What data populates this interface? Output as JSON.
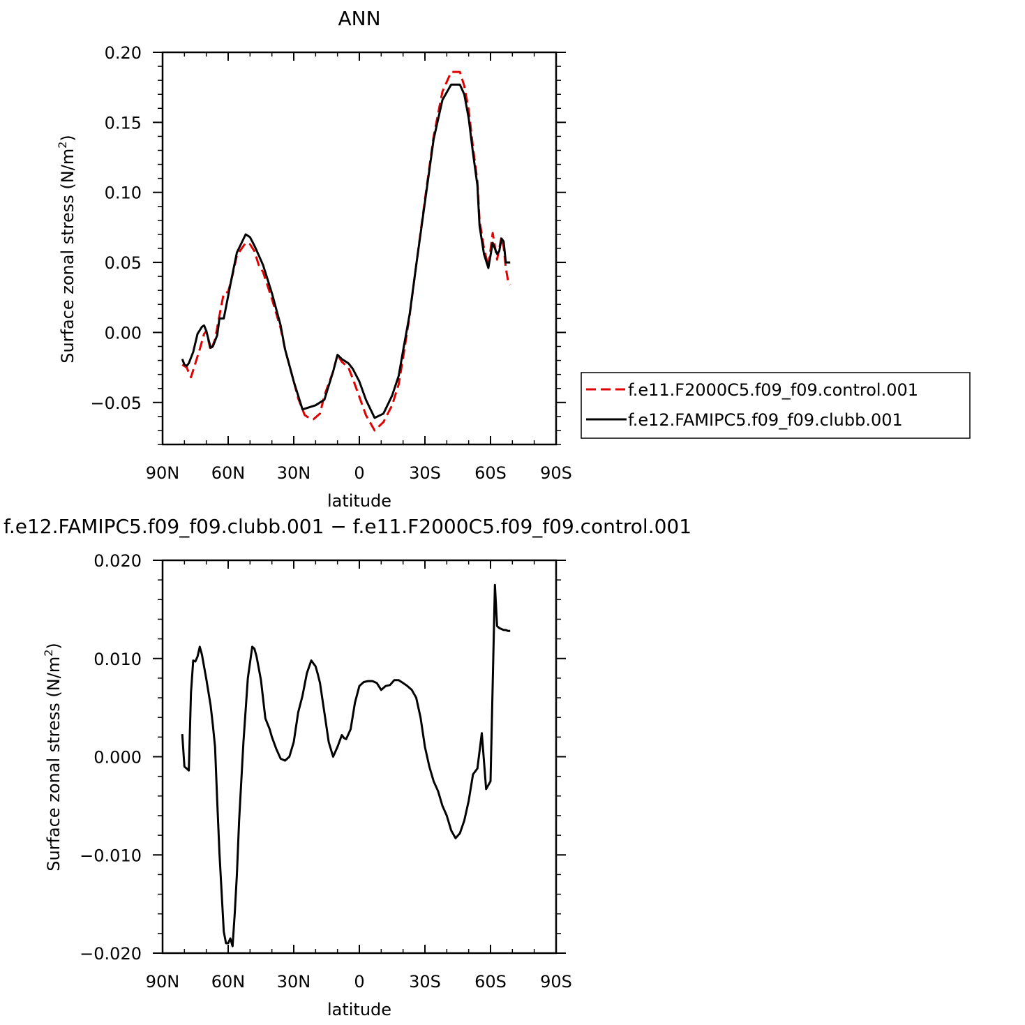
{
  "chart_data": [
    {
      "type": "line",
      "title": "ANN",
      "xlabel": "latitude",
      "ylabel": "Surface zonal stress (N/m",
      "ylabel_sup": "2",
      "ylabel_tail": ")",
      "xlim": [
        90,
        -90
      ],
      "ylim": [
        -0.08,
        0.2
      ],
      "x_ticks": [
        {
          "value": 90,
          "label": "90N"
        },
        {
          "value": 60,
          "label": "60N"
        },
        {
          "value": 30,
          "label": "30N"
        },
        {
          "value": 0,
          "label": "0"
        },
        {
          "value": -30,
          "label": "30S"
        },
        {
          "value": -60,
          "label": "60S"
        },
        {
          "value": -90,
          "label": "90S"
        }
      ],
      "y_ticks": [
        {
          "value": 0.2,
          "label": "0.20"
        },
        {
          "value": 0.15,
          "label": "0.15"
        },
        {
          "value": 0.1,
          "label": "0.10"
        },
        {
          "value": 0.05,
          "label": "0.05"
        },
        {
          "value": 0.0,
          "label": "0.00"
        },
        {
          "value": -0.05,
          "label": "−0.05"
        }
      ],
      "legend_position": "right",
      "series": [
        {
          "name": "f.e11.F2000C5.f09_f09.control.001",
          "color": "#e00000",
          "dash": "dashed",
          "x": [
            81,
            79,
            77,
            75,
            73,
            71,
            70,
            68,
            66,
            64,
            62,
            60,
            58,
            56,
            52,
            50,
            48,
            46,
            44,
            40,
            36,
            34,
            30,
            28,
            25,
            23,
            21,
            18,
            16,
            12,
            10,
            8,
            5,
            3,
            0,
            -3,
            -7,
            -11,
            -15,
            -18,
            -20,
            -23,
            -26,
            -30,
            -34,
            -38,
            -42,
            -46,
            -48,
            -50,
            -52,
            -54,
            -55,
            -57,
            -59,
            -61,
            -63,
            -64,
            -65,
            -66,
            -67,
            -68,
            -69
          ],
          "y": [
            -0.023,
            -0.025,
            -0.032,
            -0.022,
            -0.012,
            -0.001,
            0.001,
            -0.013,
            -0.005,
            0.012,
            0.028,
            0.029,
            0.041,
            0.055,
            0.064,
            0.063,
            0.058,
            0.048,
            0.043,
            0.024,
            0.003,
            -0.012,
            -0.035,
            -0.047,
            -0.059,
            -0.061,
            -0.062,
            -0.058,
            -0.045,
            -0.028,
            -0.016,
            -0.021,
            -0.025,
            -0.033,
            -0.046,
            -0.059,
            -0.07,
            -0.064,
            -0.052,
            -0.037,
            -0.018,
            0.012,
            0.048,
            0.095,
            0.14,
            0.172,
            0.186,
            0.186,
            0.176,
            0.159,
            0.132,
            0.108,
            0.08,
            0.06,
            0.047,
            0.071,
            0.052,
            0.06,
            0.068,
            0.061,
            0.046,
            0.037,
            0.034
          ]
        },
        {
          "name": "f.e12.FAMIPC5.f09_f09.clubb.001",
          "color": "#000000",
          "dash": "solid",
          "x": [
            81,
            80,
            79,
            78,
            76,
            74,
            72,
            71,
            70,
            68,
            67,
            65,
            64,
            62,
            60,
            58,
            56,
            52,
            50,
            48,
            46,
            44,
            40,
            36,
            34,
            30,
            28,
            26,
            22,
            20,
            16,
            12,
            10,
            8,
            5,
            3,
            0,
            -3,
            -7,
            -11,
            -15,
            -18,
            -20,
            -23,
            -26,
            -30,
            -34,
            -38,
            -42,
            -46,
            -48,
            -50,
            -52,
            -54,
            -55,
            -57,
            -59,
            -61,
            -63,
            -64,
            -65,
            -66,
            -67,
            -68,
            -69
          ],
          "y": [
            -0.019,
            -0.023,
            -0.024,
            -0.022,
            -0.014,
            -0.001,
            0.004,
            0.005,
            0.001,
            -0.011,
            -0.01,
            -0.002,
            0.01,
            0.01,
            0.026,
            0.042,
            0.057,
            0.07,
            0.068,
            0.062,
            0.055,
            0.048,
            0.028,
            0.005,
            -0.012,
            -0.035,
            -0.045,
            -0.055,
            -0.053,
            -0.052,
            -0.048,
            -0.028,
            -0.016,
            -0.019,
            -0.022,
            -0.026,
            -0.035,
            -0.048,
            -0.061,
            -0.058,
            -0.045,
            -0.031,
            -0.013,
            0.013,
            0.048,
            0.093,
            0.138,
            0.166,
            0.177,
            0.177,
            0.17,
            0.153,
            0.128,
            0.105,
            0.076,
            0.056,
            0.046,
            0.064,
            0.056,
            0.058,
            0.067,
            0.065,
            0.05,
            0.05,
            0.05
          ]
        }
      ]
    },
    {
      "type": "line",
      "title": "f.e12.FAMIPC5.f09_f09.clubb.001 − f.e11.F2000C5.f09_f09.control.001",
      "xlabel": "latitude",
      "ylabel": "Surface zonal stress (N/m",
      "ylabel_sup": "2",
      "ylabel_tail": ")",
      "xlim": [
        90,
        -90
      ],
      "ylim": [
        -0.02,
        0.02
      ],
      "x_ticks": [
        {
          "value": 90,
          "label": "90N"
        },
        {
          "value": 60,
          "label": "60N"
        },
        {
          "value": 30,
          "label": "30N"
        },
        {
          "value": 0,
          "label": "0"
        },
        {
          "value": -30,
          "label": "30S"
        },
        {
          "value": -60,
          "label": "60S"
        },
        {
          "value": -90,
          "label": "90S"
        }
      ],
      "y_ticks": [
        {
          "value": 0.02,
          "label": "0.020"
        },
        {
          "value": 0.01,
          "label": "0.010"
        },
        {
          "value": 0.0,
          "label": "0.000"
        },
        {
          "value": -0.01,
          "label": "−0.010"
        },
        {
          "value": -0.02,
          "label": "−0.020"
        }
      ],
      "series": [
        {
          "color": "#000000",
          "dash": "solid",
          "x": [
            81,
            80,
            79,
            78,
            77,
            76,
            75,
            74,
            73,
            72,
            70,
            68,
            67,
            66,
            65,
            64,
            62,
            61,
            60,
            59,
            58,
            57,
            56,
            55,
            54,
            53,
            51,
            49,
            48,
            47,
            45,
            43,
            41,
            40,
            38,
            36,
            34,
            32,
            30,
            28,
            26,
            24,
            22,
            20,
            19,
            18,
            16,
            14,
            12,
            10,
            8,
            7,
            6,
            4,
            2,
            0,
            -2,
            -4,
            -6,
            -8,
            -10,
            -12,
            -14,
            -16,
            -18,
            -20,
            -22,
            -24,
            -26,
            -28,
            -30,
            -32,
            -34,
            -36,
            -38,
            -40,
            -42,
            -44,
            -46,
            -48,
            -50,
            -52,
            -54,
            -56,
            -58,
            -60,
            -62,
            -63,
            -64,
            -65,
            -66,
            -67,
            -68,
            -69
          ],
          "y": [
            0.0023,
            -0.001,
            -0.0012,
            -0.0014,
            0.0065,
            0.0098,
            0.0097,
            0.0102,
            0.0112,
            0.0104,
            0.0079,
            0.0052,
            0.0032,
            0.001,
            -0.0045,
            -0.0098,
            -0.0178,
            -0.019,
            -0.019,
            -0.0185,
            -0.0193,
            -0.016,
            -0.012,
            -0.0065,
            -0.0025,
            0.0015,
            0.008,
            0.0112,
            0.011,
            0.0102,
            0.0078,
            0.0039,
            0.0028,
            0.002,
            0.0008,
            -0.0002,
            -0.0004,
            0.0,
            0.0015,
            0.0045,
            0.0062,
            0.0085,
            0.0098,
            0.0092,
            0.0084,
            0.0075,
            0.0045,
            0.0015,
            0.0,
            0.001,
            0.0022,
            0.0019,
            0.0018,
            0.0028,
            0.0055,
            0.0072,
            0.0076,
            0.0077,
            0.0077,
            0.0075,
            0.0068,
            0.0072,
            0.0073,
            0.0078,
            0.0078,
            0.0075,
            0.0072,
            0.0068,
            0.006,
            0.004,
            0.001,
            -0.001,
            -0.0025,
            -0.0035,
            -0.005,
            -0.006,
            -0.0075,
            -0.0083,
            -0.0078,
            -0.0065,
            -0.0045,
            -0.0018,
            -0.0012,
            0.0024,
            -0.0033,
            -0.0025,
            0.0175,
            0.0133,
            0.0131,
            0.013,
            0.0129,
            0.0129,
            0.0128,
            0.0128
          ]
        }
      ]
    }
  ]
}
